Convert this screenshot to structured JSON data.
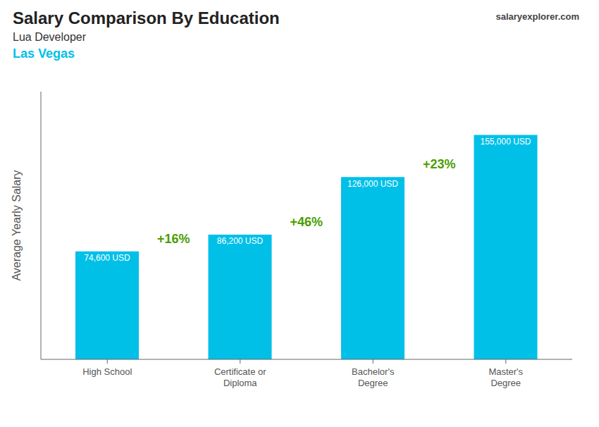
{
  "chart_data": {
    "type": "bar",
    "title": "Salary Comparison By Education",
    "subtitle": [
      "Lua Developer",
      "Las Vegas"
    ],
    "ylabel": "Average Yearly Salary",
    "categories": [
      "High School",
      "Certificate or\nDiploma",
      "Bachelor's\nDegree",
      "Master's\nDegree"
    ],
    "values": [
      74600,
      86200,
      126000,
      155000
    ],
    "value_labels": [
      "74,600 USD",
      "86,200 USD",
      "126,000 USD",
      "155,000 USD"
    ],
    "data_labels": true,
    "color": "#00c0e8",
    "ylim": [
      0,
      185000
    ],
    "grid": false,
    "tick_labels": "x",
    "annotations": [
      "+16%",
      "+46%",
      "+23%",
      "salaryexplorer.com"
    ]
  }
}
